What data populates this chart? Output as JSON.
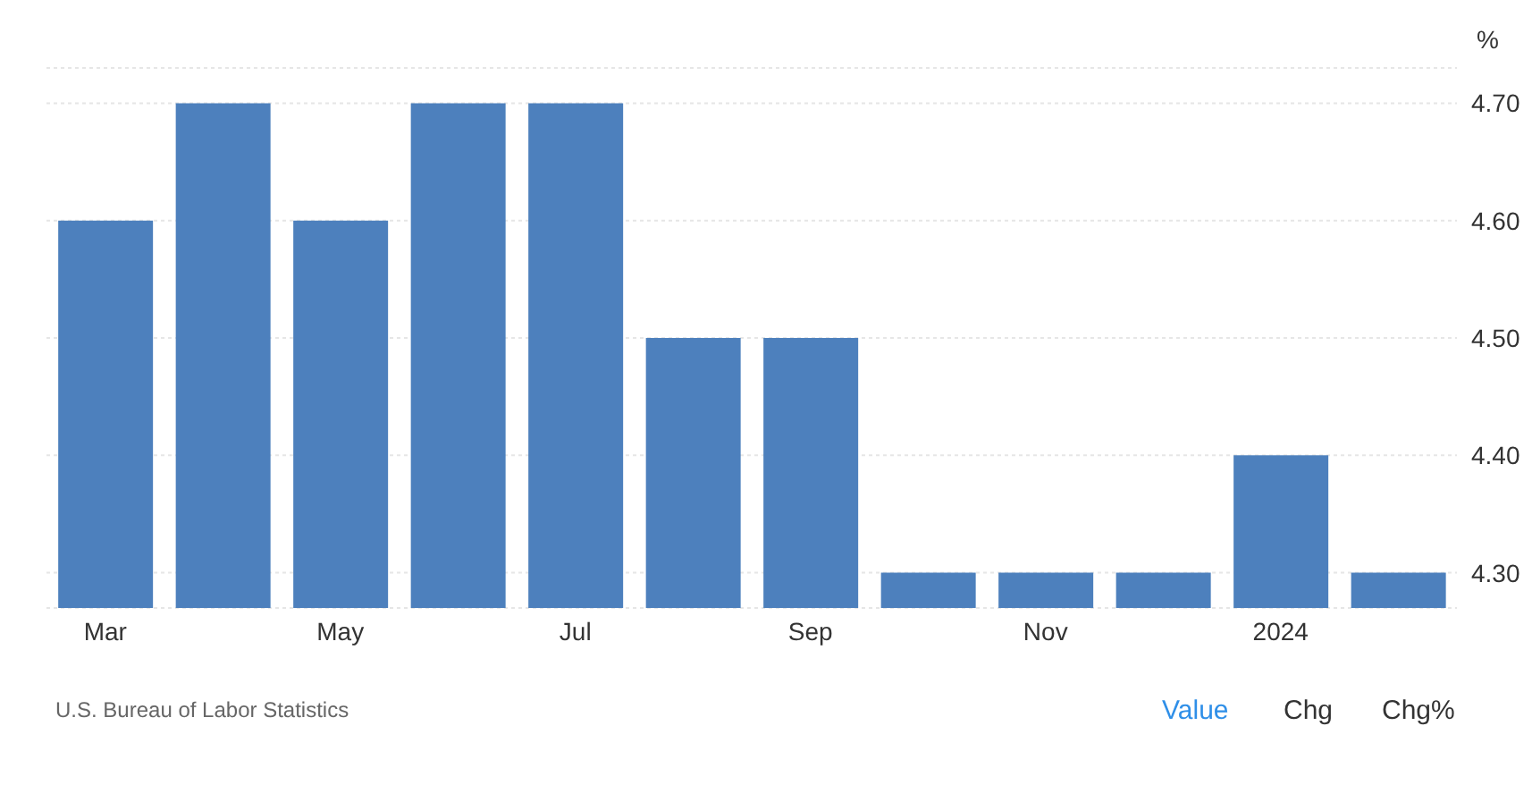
{
  "chart_data": {
    "type": "bar",
    "ylabel": "%",
    "categories": [
      "Mar",
      null,
      "May",
      null,
      "Jul",
      null,
      "Sep",
      null,
      "Nov",
      null,
      "2024",
      null
    ],
    "values": [
      4.6,
      4.7,
      4.6,
      4.7,
      4.7,
      4.5,
      4.5,
      4.3,
      4.3,
      4.3,
      4.4,
      4.3
    ],
    "color": "#4d80bd",
    "ylim": [
      4.27,
      4.73
    ],
    "yticks": [
      {
        "value": 4.3,
        "label": "4.30"
      },
      {
        "value": 4.4,
        "label": "4.40"
      },
      {
        "value": 4.5,
        "label": "4.50"
      },
      {
        "value": 4.6,
        "label": "4.60"
      },
      {
        "value": 4.7,
        "label": "4.70"
      }
    ],
    "grid": "y",
    "annotations": [
      "U.S. Bureau of Labor Statistics",
      "Value",
      "Chg",
      "Chg%"
    ]
  }
}
